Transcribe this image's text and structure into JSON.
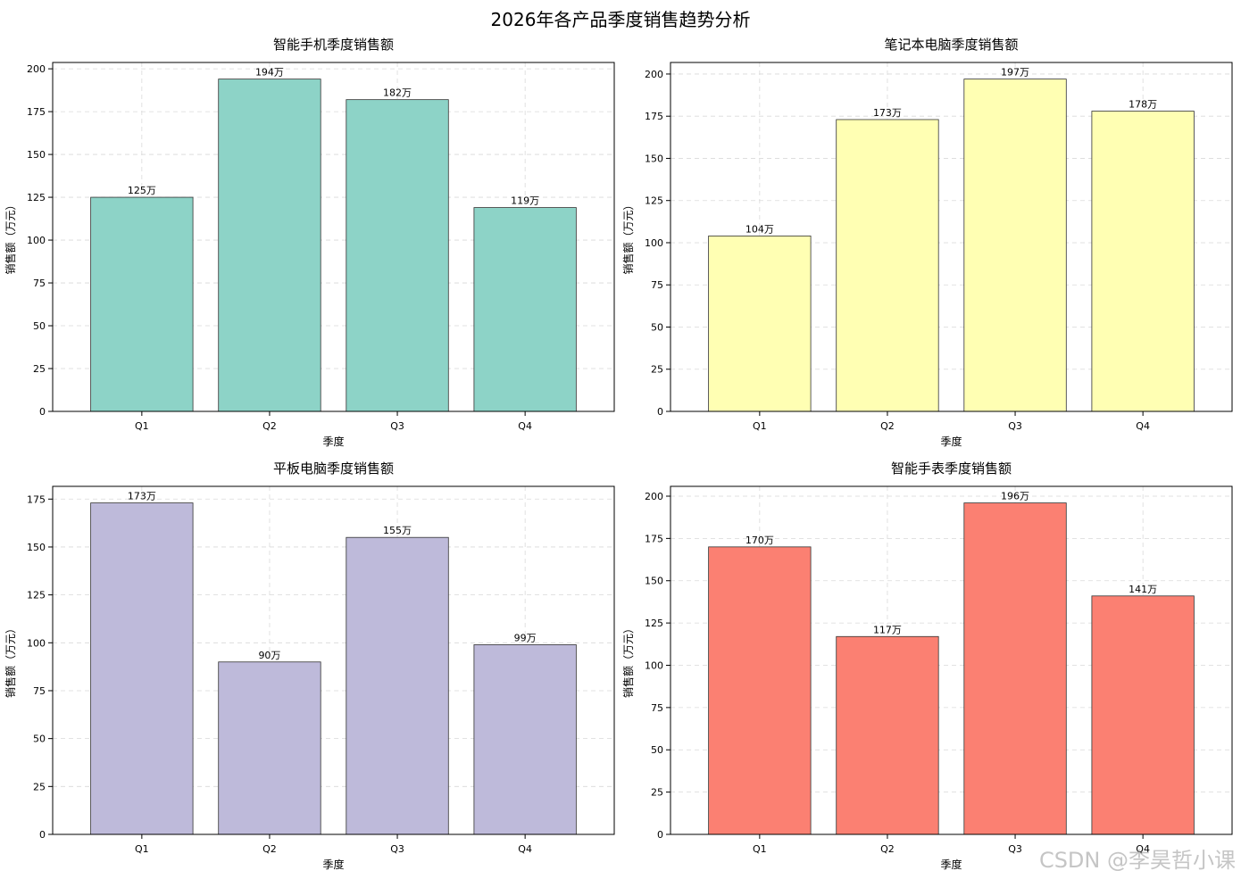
{
  "figure": {
    "title": "2026年各产品季度销售趋势分析"
  },
  "watermark": "CSDN @李昊哲小课",
  "chart_data": [
    {
      "type": "bar",
      "title": "智能手机季度销售额",
      "xlabel": "季度",
      "ylabel": "销售额（万元）",
      "categories": [
        "Q1",
        "Q2",
        "Q3",
        "Q4"
      ],
      "values": [
        125,
        194,
        182,
        119
      ],
      "data_labels": [
        "125万",
        "194万",
        "182万",
        "119万"
      ],
      "ylim": [
        0,
        203.7
      ],
      "yticks": [
        0,
        25,
        50,
        75,
        100,
        125,
        150,
        175,
        200
      ],
      "color": "#8dd3c7",
      "grid": true
    },
    {
      "type": "bar",
      "title": "笔记本电脑季度销售额",
      "xlabel": "季度",
      "ylabel": "销售额（万元）",
      "categories": [
        "Q1",
        "Q2",
        "Q3",
        "Q4"
      ],
      "values": [
        104,
        173,
        197,
        178
      ],
      "data_labels": [
        "104万",
        "173万",
        "197万",
        "178万"
      ],
      "ylim": [
        0,
        206.85
      ],
      "yticks": [
        0,
        25,
        50,
        75,
        100,
        125,
        150,
        175,
        200
      ],
      "color": "#ffffb3",
      "grid": true
    },
    {
      "type": "bar",
      "title": "平板电脑季度销售额",
      "xlabel": "季度",
      "ylabel": "销售额（万元）",
      "categories": [
        "Q1",
        "Q2",
        "Q3",
        "Q4"
      ],
      "values": [
        173,
        90,
        155,
        99
      ],
      "data_labels": [
        "173万",
        "90万",
        "155万",
        "99万"
      ],
      "ylim": [
        0,
        181.65
      ],
      "yticks": [
        0,
        25,
        50,
        75,
        100,
        125,
        150,
        175
      ],
      "color": "#bebada",
      "grid": true
    },
    {
      "type": "bar",
      "title": "智能手表季度销售额",
      "xlabel": "季度",
      "ylabel": "销售额（万元）",
      "categories": [
        "Q1",
        "Q2",
        "Q3",
        "Q4"
      ],
      "values": [
        170,
        117,
        196,
        141
      ],
      "data_labels": [
        "170万",
        "117万",
        "196万",
        "141万"
      ],
      "ylim": [
        0,
        205.8
      ],
      "yticks": [
        0,
        25,
        50,
        75,
        100,
        125,
        150,
        175,
        200
      ],
      "color": "#fb8072",
      "grid": true
    }
  ]
}
